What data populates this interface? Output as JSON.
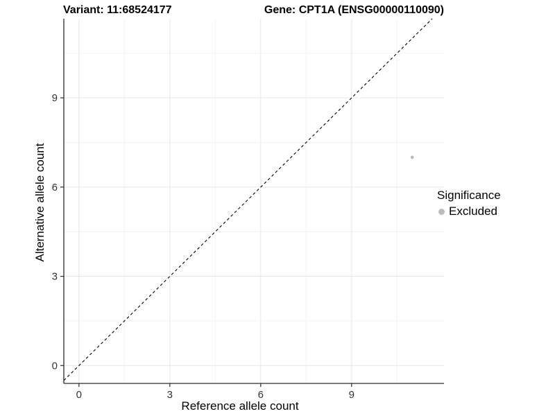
{
  "chart_data": {
    "type": "scatter",
    "title_left": "Variant: 11:68524177",
    "title_right": "Gene: CPT1A (ENSG00000110090)",
    "xlabel": "Reference allele count",
    "ylabel": "Alternative allele count",
    "xlim": [
      -0.5,
      12.05
    ],
    "ylim": [
      -0.6,
      11.66
    ],
    "x_major_ticks": [
      0,
      3,
      6,
      9
    ],
    "y_major_ticks": [
      0,
      3,
      6,
      9
    ],
    "x_minor_gridlines": [
      1.5,
      4.5,
      7.5,
      10.5
    ],
    "y_minor_gridlines": [
      1.5,
      4.5,
      7.5,
      10.5
    ],
    "grid": true,
    "points": [
      {
        "x": 11,
        "y": 7,
        "series": "Excluded"
      }
    ],
    "reference_line": {
      "type": "identity",
      "equation": "y = x",
      "style": "dashed"
    },
    "legend": {
      "title": "Significance",
      "position": "right",
      "items": [
        {
          "label": "Excluded",
          "color": "#bcbcbc"
        }
      ]
    },
    "colors": {
      "point": "#bcbcbc",
      "grid_major": "#e6e6e6",
      "grid_minor": "#f3f3f3",
      "axis_line": "#2a2a2a",
      "tick_text": "#333333",
      "identity_line": "#000000",
      "background": "#ffffff"
    }
  }
}
